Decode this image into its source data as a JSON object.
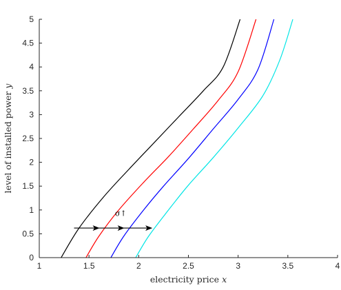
{
  "chart_data": {
    "type": "line",
    "xlabel": "electricity price x",
    "ylabel": "level of installed power y",
    "xlim": [
      1,
      4
    ],
    "ylim": [
      0,
      5
    ],
    "x_ticks": [
      "1",
      "1.5",
      "2",
      "2.5",
      "3",
      "3.5",
      "4"
    ],
    "y_ticks": [
      "0",
      "0.5",
      "1",
      "1.5",
      "2",
      "2.5",
      "3",
      "3.5",
      "4",
      "4.5",
      "5"
    ],
    "series": [
      {
        "color": "#000000",
        "x": [
          1.22,
          1.4,
          1.65,
          1.9,
          2.15,
          2.4,
          2.65,
          2.85,
          3.02
        ],
        "y": [
          0.0,
          0.62,
          1.28,
          1.85,
          2.4,
          2.95,
          3.5,
          4.0,
          5.0
        ]
      },
      {
        "color": "#ff0000",
        "x": [
          1.47,
          1.6,
          1.8,
          2.05,
          2.3,
          2.55,
          2.8,
          3.0,
          3.18
        ],
        "y": [
          0.0,
          0.45,
          1.0,
          1.58,
          2.12,
          2.7,
          3.3,
          3.9,
          5.0
        ]
      },
      {
        "color": "#0000ff",
        "x": [
          1.72,
          1.85,
          2.05,
          2.25,
          2.5,
          2.75,
          3.0,
          3.2,
          3.36
        ],
        "y": [
          0.0,
          0.45,
          1.0,
          1.5,
          2.08,
          2.7,
          3.32,
          3.95,
          5.0
        ]
      },
      {
        "color": "#00e5e5",
        "x": [
          1.97,
          2.1,
          2.3,
          2.5,
          2.75,
          3.0,
          3.25,
          3.42,
          3.55
        ],
        "y": [
          0.0,
          0.45,
          1.0,
          1.52,
          2.1,
          2.72,
          3.4,
          4.15,
          5.0
        ]
      }
    ],
    "arrows": [
      {
        "from": [
          1.35,
          0.62
        ],
        "to": [
          1.6,
          0.62
        ]
      },
      {
        "from": [
          1.6,
          0.62
        ],
        "to": [
          1.85,
          0.62
        ]
      },
      {
        "from": [
          1.85,
          0.62
        ],
        "to": [
          2.13,
          0.62
        ]
      }
    ],
    "annotation": {
      "text": "σ↑",
      "x": 1.82,
      "y": 0.93
    }
  }
}
